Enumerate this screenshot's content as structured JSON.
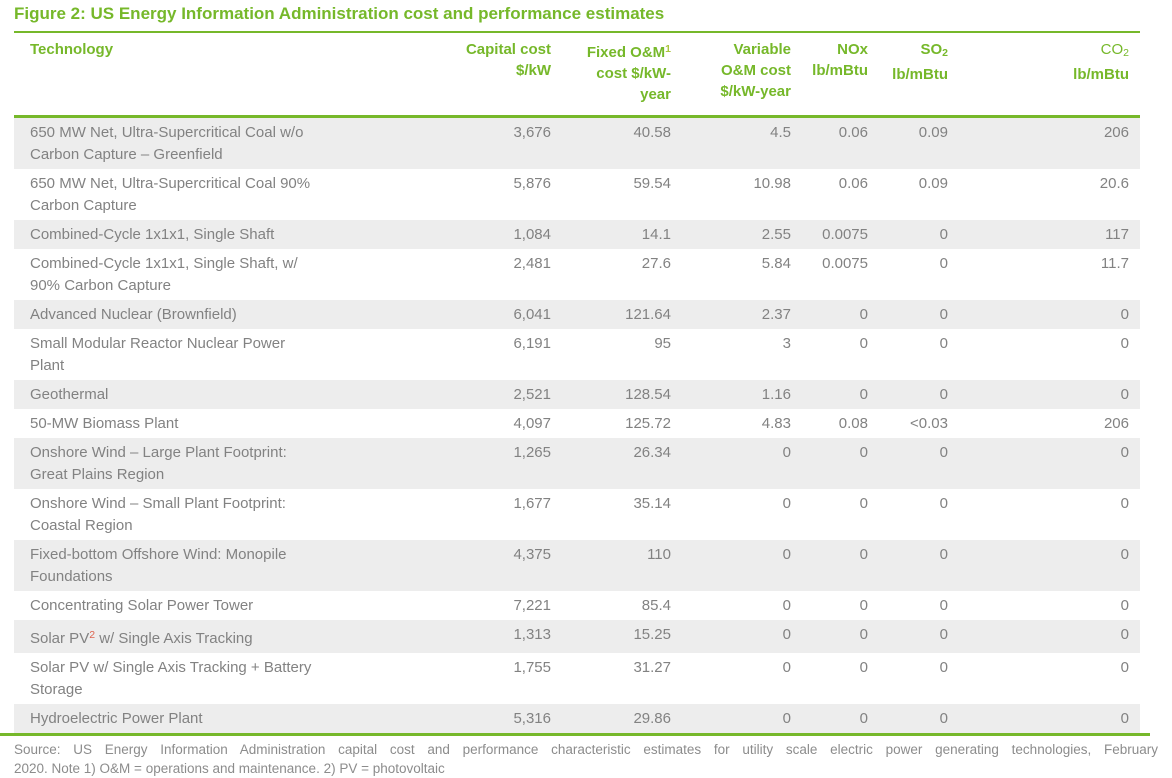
{
  "title": "Figure 2: US Energy Information Administration cost and performance estimates",
  "colors": {
    "accent_green": "#76b82a",
    "note1_superscript_green": "#aac53d",
    "note2_superscript_red": "#dd6450",
    "body_text_gray": "#828282",
    "row_stripe_gray": "#ededed",
    "footer_text_gray": "#8c8c8c"
  },
  "table": {
    "columns": [
      {
        "segments": [
          {
            "t": "Technology"
          }
        ]
      },
      {
        "segments": [
          {
            "t": "Capital cost $/kW"
          }
        ],
        "max": 90
      },
      {
        "segments": [
          {
            "t": "Fixed O&M"
          },
          {
            "t": "1",
            "s": "sup sup-alt"
          },
          {
            "t": " cost $/kW-year"
          }
        ],
        "max": 92
      },
      {
        "segments": [
          {
            "t": "Variable O&M cost $/kW-year"
          }
        ],
        "max": 85
      },
      {
        "segments": [
          {
            "t": "NOx lb/mBtu"
          }
        ],
        "max": 70
      },
      {
        "segments": [
          {
            "t": "SO"
          },
          {
            "t": "2",
            "s": "sub"
          },
          {
            "t": " lb/mBtu"
          }
        ],
        "max": 70
      },
      {
        "segments": [
          {
            "t": "CO",
            "s": "reg"
          },
          {
            "t": "2",
            "s": "sub reg"
          },
          {
            "t": " lb/mBtu"
          }
        ],
        "max": 72
      }
    ],
    "rows": [
      {
        "tech": [
          {
            "t": "650 MW Net, Ultra-Supercritical Coal w/o Carbon Capture – Greenfield"
          }
        ],
        "values": [
          "3,676",
          "40.58",
          "4.5",
          "0.06",
          "0.09",
          "206"
        ]
      },
      {
        "tech": [
          {
            "t": "650 MW Net, Ultra-Supercritical Coal 90% Carbon Capture"
          }
        ],
        "values": [
          "5,876",
          "59.54",
          "10.98",
          "0.06",
          "0.09",
          "20.6"
        ]
      },
      {
        "tech": [
          {
            "t": "Combined-Cycle 1x1x1, Single Shaft"
          }
        ],
        "values": [
          "1,084",
          "14.1",
          "2.55",
          "0.0075",
          "0",
          "117"
        ]
      },
      {
        "tech": [
          {
            "t": "Combined-Cycle 1x1x1, Single Shaft, w/ 90% Carbon Capture"
          }
        ],
        "values": [
          "2,481",
          "27.6",
          "5.84",
          "0.0075",
          "0",
          "11.7"
        ]
      },
      {
        "tech": [
          {
            "t": "Advanced Nuclear (Brownfield)"
          }
        ],
        "values": [
          "6,041",
          "121.64",
          "2.37",
          "0",
          "0",
          "0"
        ]
      },
      {
        "tech": [
          {
            "t": "Small Modular Reactor Nuclear Power Plant"
          }
        ],
        "values": [
          "6,191",
          "95",
          "3",
          "0",
          "0",
          "0"
        ]
      },
      {
        "tech": [
          {
            "t": "Geothermal"
          }
        ],
        "values": [
          "2,521",
          "128.54",
          "1.16",
          "0",
          "0",
          "0"
        ]
      },
      {
        "tech": [
          {
            "t": "50-MW Biomass Plant"
          }
        ],
        "values": [
          "4,097",
          "125.72",
          "4.83",
          "0.08",
          "<0.03",
          "206"
        ]
      },
      {
        "tech": [
          {
            "t": "Onshore Wind – Large Plant Footprint: Great Plains Region"
          }
        ],
        "values": [
          "1,265",
          "26.34",
          "0",
          "0",
          "0",
          "0"
        ]
      },
      {
        "tech": [
          {
            "t": "Onshore Wind – Small Plant Footprint: Coastal Region"
          }
        ],
        "values": [
          "1,677",
          "35.14",
          "0",
          "0",
          "0",
          "0"
        ]
      },
      {
        "tech": [
          {
            "t": "Fixed-bottom Offshore Wind: Monopile Foundations"
          }
        ],
        "values": [
          "4,375",
          "110",
          "0",
          "0",
          "0",
          "0"
        ]
      },
      {
        "tech": [
          {
            "t": "Concentrating Solar Power Tower"
          }
        ],
        "values": [
          "7,221",
          "85.4",
          "0",
          "0",
          "0",
          "0"
        ]
      },
      {
        "tech": [
          {
            "t": "Solar PV"
          },
          {
            "t": "2",
            "s": "sup sup-red"
          },
          {
            "t": " w/ Single Axis Tracking"
          }
        ],
        "values": [
          "1,313",
          "15.25",
          "0",
          "0",
          "0",
          "0"
        ]
      },
      {
        "tech": [
          {
            "t": "Solar PV w/ Single Axis Tracking + Battery Storage"
          }
        ],
        "values": [
          "1,755",
          "31.27",
          "0",
          "0",
          "0",
          "0"
        ]
      },
      {
        "tech": [
          {
            "t": "Hydroelectric Power Plant"
          }
        ],
        "values": [
          "5,316",
          "29.86",
          "0",
          "0",
          "0",
          "0"
        ]
      }
    ]
  },
  "footer": {
    "line1": "Source: US Energy Information Administration capital cost and performance characteristic estimates for utility scale electric power generating technologies, February",
    "line2": "2020. Note 1) O&M = operations and maintenance. 2) PV = photovoltaic"
  },
  "chart_data": {
    "type": "table",
    "title": "Figure 2: US Energy Information Administration cost and performance estimates",
    "columns": [
      "Technology",
      "Capital cost $/kW",
      "Fixed O&M(1) cost $/kW-year",
      "Variable O&M cost $/kW-year",
      "NOx lb/mBtu",
      "SO2 lb/mBtu",
      "CO2 lb/mBtu"
    ],
    "rows": [
      [
        "650 MW Net, Ultra-Supercritical Coal w/o Carbon Capture – Greenfield",
        3676,
        40.58,
        4.5,
        0.06,
        0.09,
        206
      ],
      [
        "650 MW Net, Ultra-Supercritical Coal 90% Carbon Capture",
        5876,
        59.54,
        10.98,
        0.06,
        0.09,
        20.6
      ],
      [
        "Combined-Cycle 1x1x1, Single Shaft",
        1084,
        14.1,
        2.55,
        0.0075,
        0,
        117
      ],
      [
        "Combined-Cycle 1x1x1, Single Shaft, w/ 90% Carbon Capture",
        2481,
        27.6,
        5.84,
        0.0075,
        0,
        11.7
      ],
      [
        "Advanced Nuclear (Brownfield)",
        6041,
        121.64,
        2.37,
        0,
        0,
        0
      ],
      [
        "Small Modular Reactor Nuclear Power Plant",
        6191,
        95,
        3,
        0,
        0,
        0
      ],
      [
        "Geothermal",
        2521,
        128.54,
        1.16,
        0,
        0,
        0
      ],
      [
        "50-MW Biomass Plant",
        4097,
        125.72,
        4.83,
        0.08,
        "<0.03",
        206
      ],
      [
        "Onshore Wind – Large Plant Footprint: Great Plains Region",
        1265,
        26.34,
        0,
        0,
        0,
        0
      ],
      [
        "Onshore Wind – Small Plant Footprint: Coastal Region",
        1677,
        35.14,
        0,
        0,
        0,
        0
      ],
      [
        "Fixed-bottom Offshore Wind: Monopile Foundations",
        4375,
        110,
        0,
        0,
        0,
        0
      ],
      [
        "Concentrating Solar Power Tower",
        7221,
        85.4,
        0,
        0,
        0,
        0
      ],
      [
        "Solar PV(2) w/ Single Axis Tracking",
        1313,
        15.25,
        0,
        0,
        0,
        0
      ],
      [
        "Solar PV w/ Single Axis Tracking + Battery Storage",
        1755,
        31.27,
        0,
        0,
        0,
        0
      ],
      [
        "Hydroelectric Power Plant",
        5316,
        29.86,
        0,
        0,
        0,
        0
      ]
    ],
    "source_note": "Source: US Energy Information Administration capital cost and performance characteristic estimates for utility scale electric power generating technologies, February 2020. Note 1) O&M = operations and maintenance. 2) PV = photovoltaic"
  }
}
